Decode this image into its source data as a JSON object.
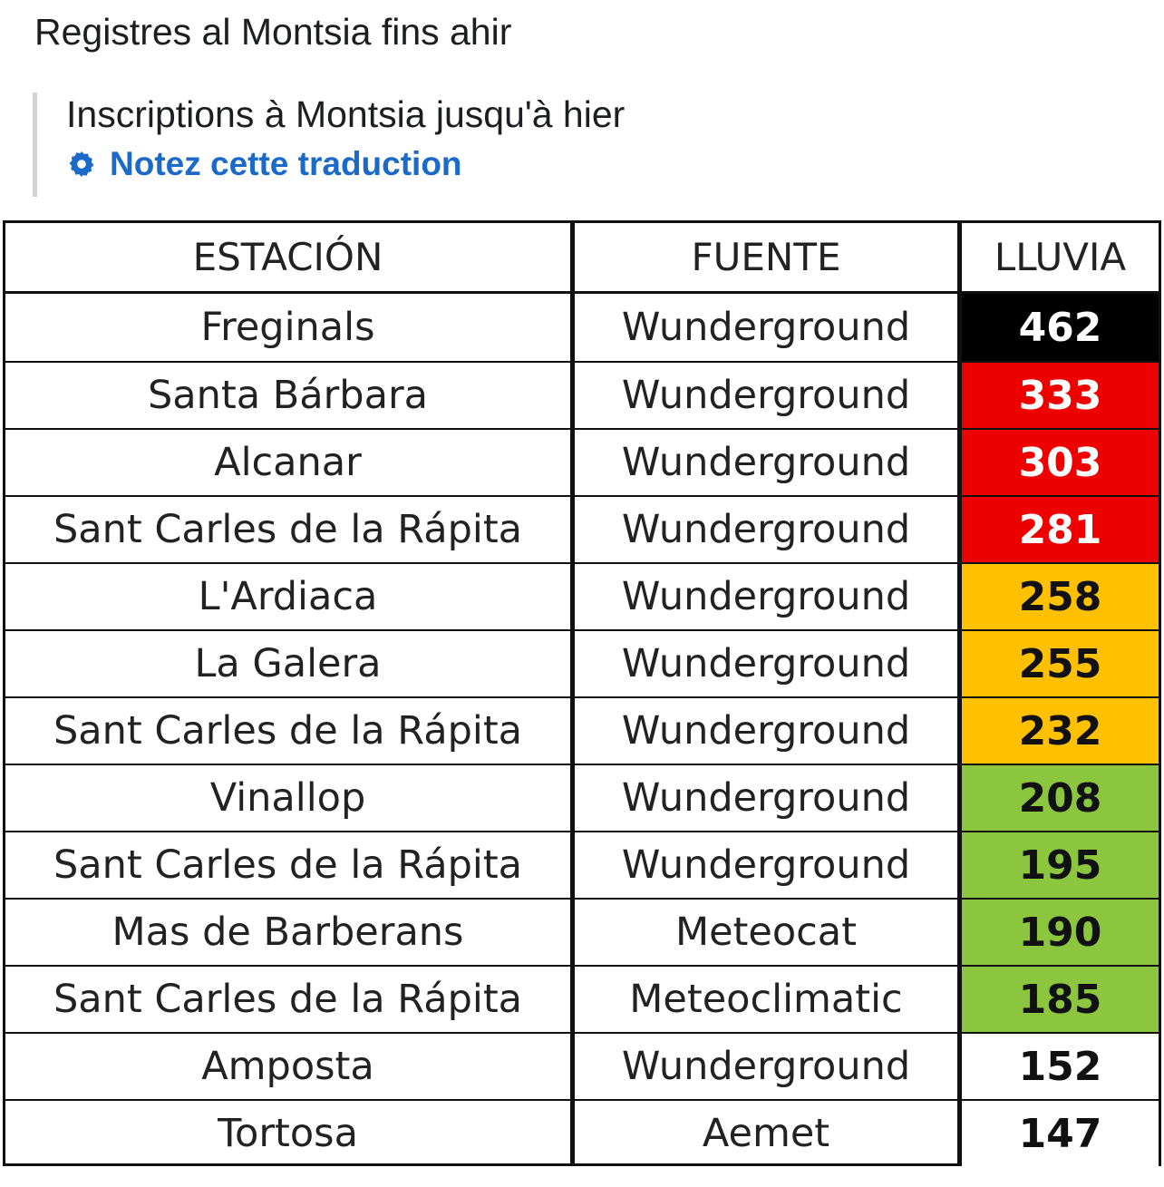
{
  "post": {
    "original_text": "Registres al Montsia fins ahir",
    "translated_text": "Inscriptions à Montsia jusqu'à hier",
    "rate_translation_label": "Notez cette traduction",
    "rate_icon": "gear-icon",
    "link_color": "#1b6ac9"
  },
  "table": {
    "headers": [
      "ESTACIÓN",
      "FUENTE",
      "LLUVIA"
    ],
    "rows": [
      {
        "station": "Freginals",
        "source": "Wunderground",
        "rain": "462",
        "bg": "#000000",
        "fg": "#ffffff"
      },
      {
        "station": "Santa Bárbara",
        "source": "Wunderground",
        "rain": "333",
        "bg": "#ee0000",
        "fg": "#ffffff"
      },
      {
        "station": "Alcanar",
        "source": "Wunderground",
        "rain": "303",
        "bg": "#ee0000",
        "fg": "#ffffff"
      },
      {
        "station": "Sant Carles de la Rápita",
        "source": "Wunderground",
        "rain": "281",
        "bg": "#ee0000",
        "fg": "#ffffff"
      },
      {
        "station": "L'Ardiaca",
        "source": "Wunderground",
        "rain": "258",
        "bg": "#ffc000",
        "fg": "#111111"
      },
      {
        "station": "La Galera",
        "source": "Wunderground",
        "rain": "255",
        "bg": "#ffc000",
        "fg": "#111111"
      },
      {
        "station": "Sant Carles de la Rápita",
        "source": "Wunderground",
        "rain": "232",
        "bg": "#ffc000",
        "fg": "#111111"
      },
      {
        "station": "Vinallop",
        "source": "Wunderground",
        "rain": "208",
        "bg": "#8cc63f",
        "fg": "#111111"
      },
      {
        "station": "Sant Carles de la Rápita",
        "source": "Wunderground",
        "rain": "195",
        "bg": "#8cc63f",
        "fg": "#111111"
      },
      {
        "station": "Mas de Barberans",
        "source": "Meteocat",
        "rain": "190",
        "bg": "#8cc63f",
        "fg": "#111111"
      },
      {
        "station": "Sant Carles de la Rápita",
        "source": "Meteoclimatic",
        "rain": "185",
        "bg": "#8cc63f",
        "fg": "#111111"
      },
      {
        "station": "Amposta",
        "source": "Wunderground",
        "rain": "152",
        "bg": "#ffffff",
        "fg": "#111111"
      },
      {
        "station": "Tortosa",
        "source": "Aemet",
        "rain": "147",
        "bg": "#ffffff",
        "fg": "#111111"
      }
    ]
  }
}
